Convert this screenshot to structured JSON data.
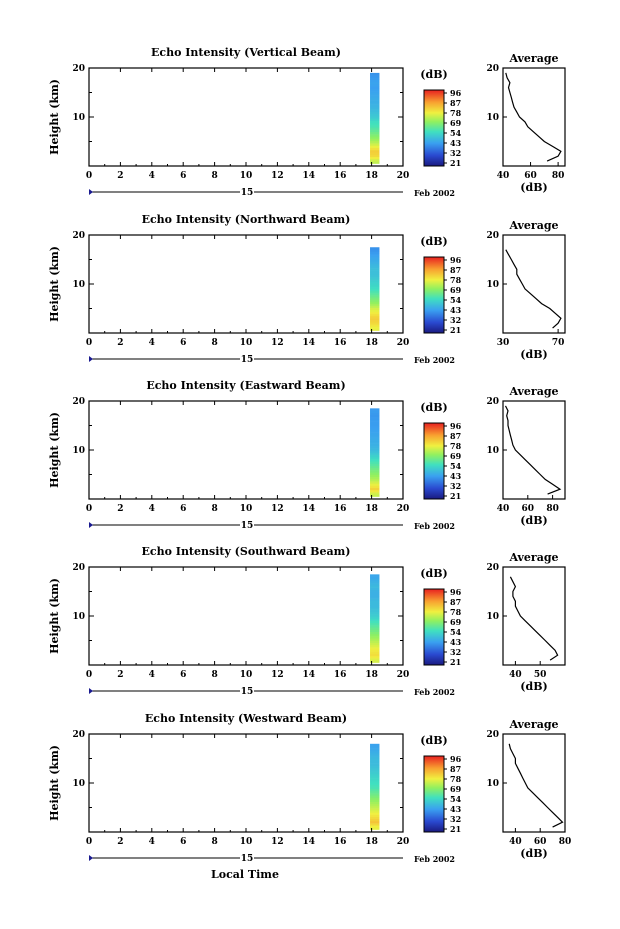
{
  "figure": {
    "date_label": "Feb 2002",
    "day_label": "15",
    "x_axis_label": "Local Time",
    "height_axis_label": "Height (km)",
    "colorbar_unit": "(dB)",
    "colorbar_ticks": [
      "96",
      "87",
      "78",
      "69",
      "54",
      "43",
      "32",
      "21"
    ],
    "avg_title": "Average",
    "avg_xlabel": "(dB)"
  },
  "chart_data": [
    {
      "type": "heatmap",
      "title": "Echo Intensity (Vertical Beam)",
      "xlabel": "Local Time",
      "ylabel": "Height (km)",
      "xlim": [
        0,
        20
      ],
      "ylim": [
        0,
        20
      ],
      "xticks": [
        0,
        2,
        4,
        6,
        8,
        10,
        12,
        14,
        16,
        18,
        20
      ],
      "yticks": [
        10,
        20
      ],
      "data_time_range": [
        17.9,
        18.5
      ],
      "data_height_range": [
        0.5,
        19
      ],
      "colorscale_db": [
        21,
        96
      ],
      "average_profile": {
        "xlim": [
          40,
          85
        ],
        "xticks": [
          40,
          60,
          80
        ],
        "ylim": [
          0,
          20
        ],
        "height_km": [
          1,
          2,
          3,
          4,
          5,
          6,
          7,
          8,
          9,
          10,
          11,
          12,
          13,
          14,
          15,
          16,
          17,
          18,
          19
        ],
        "db": [
          72,
          80,
          82,
          76,
          70,
          66,
          62,
          58,
          56,
          52,
          50,
          48,
          47,
          46,
          45,
          44,
          45,
          43,
          42
        ]
      }
    },
    {
      "type": "heatmap",
      "title": "Echo Intensity (Northward Beam)",
      "xlabel": "Local Time",
      "ylabel": "Height (km)",
      "xlim": [
        0,
        20
      ],
      "ylim": [
        0,
        20
      ],
      "xticks": [
        0,
        2,
        4,
        6,
        8,
        10,
        12,
        14,
        16,
        18,
        20
      ],
      "yticks": [
        10,
        20
      ],
      "data_time_range": [
        17.9,
        18.5
      ],
      "data_height_range": [
        0.5,
        17.5
      ],
      "colorscale_db": [
        21,
        96
      ],
      "average_profile": {
        "xlim": [
          30,
          75
        ],
        "xticks": [
          30,
          70
        ],
        "ylim": [
          0,
          20
        ],
        "height_km": [
          1,
          2,
          3,
          4,
          5,
          6,
          7,
          8,
          9,
          10,
          11,
          12,
          13,
          14,
          15,
          16,
          17
        ],
        "db": [
          66,
          70,
          72,
          68,
          64,
          58,
          54,
          50,
          46,
          44,
          42,
          40,
          40,
          38,
          36,
          34,
          32
        ]
      }
    },
    {
      "type": "heatmap",
      "title": "Echo Intensity (Eastward Beam)",
      "xlabel": "Local Time",
      "ylabel": "Height (km)",
      "xlim": [
        0,
        20
      ],
      "ylim": [
        0,
        20
      ],
      "xticks": [
        0,
        2,
        4,
        6,
        8,
        10,
        12,
        14,
        16,
        18,
        20
      ],
      "yticks": [
        10,
        20
      ],
      "data_time_range": [
        17.9,
        18.5
      ],
      "data_height_range": [
        0.5,
        18.5
      ],
      "colorscale_db": [
        21,
        96
      ],
      "average_profile": {
        "xlim": [
          40,
          90
        ],
        "xticks": [
          40,
          60,
          80
        ],
        "ylim": [
          0,
          20
        ],
        "height_km": [
          1,
          2,
          3,
          4,
          5,
          6,
          7,
          8,
          9,
          10,
          11,
          12,
          13,
          14,
          15,
          16,
          17,
          18,
          19
        ],
        "db": [
          76,
          86,
          80,
          74,
          70,
          66,
          62,
          58,
          54,
          50,
          48,
          47,
          46,
          45,
          44,
          44,
          43,
          44,
          42
        ]
      }
    },
    {
      "type": "heatmap",
      "title": "Echo Intensity (Southward Beam)",
      "xlabel": "Local Time",
      "ylabel": "Height (km)",
      "xlim": [
        0,
        20
      ],
      "ylim": [
        0,
        20
      ],
      "xticks": [
        0,
        2,
        4,
        6,
        8,
        10,
        12,
        14,
        16,
        18,
        20
      ],
      "yticks": [
        10,
        20
      ],
      "data_time_range": [
        17.9,
        18.5
      ],
      "data_height_range": [
        0.5,
        18.5
      ],
      "colorscale_db": [
        21,
        96
      ],
      "average_profile": {
        "xlim": [
          35,
          60
        ],
        "xticks": [
          40,
          50
        ],
        "ylim": [
          0,
          20
        ],
        "height_km": [
          1,
          2,
          3,
          4,
          5,
          6,
          7,
          8,
          9,
          10,
          11,
          12,
          13,
          14,
          15,
          16,
          17,
          18
        ],
        "db": [
          54,
          57,
          56,
          54,
          52,
          50,
          48,
          46,
          44,
          42,
          41,
          40,
          40,
          39,
          39,
          40,
          39,
          38
        ]
      }
    },
    {
      "type": "heatmap",
      "title": "Echo Intensity (Westward Beam)",
      "xlabel": "Local Time",
      "ylabel": "Height (km)",
      "xlim": [
        0,
        20
      ],
      "ylim": [
        0,
        20
      ],
      "xticks": [
        0,
        2,
        4,
        6,
        8,
        10,
        12,
        14,
        16,
        18,
        20
      ],
      "yticks": [
        10,
        20
      ],
      "data_time_range": [
        17.9,
        18.5
      ],
      "data_height_range": [
        0.5,
        18
      ],
      "colorscale_db": [
        21,
        96
      ],
      "average_profile": {
        "xlim": [
          30,
          80
        ],
        "xticks": [
          40,
          60,
          80
        ],
        "ylim": [
          0,
          20
        ],
        "height_km": [
          1,
          2,
          3,
          4,
          5,
          6,
          7,
          8,
          9,
          10,
          11,
          12,
          13,
          14,
          15,
          16,
          17,
          18
        ],
        "db": [
          70,
          78,
          74,
          70,
          66,
          62,
          58,
          54,
          50,
          48,
          46,
          44,
          42,
          40,
          40,
          38,
          36,
          35
        ]
      }
    }
  ]
}
